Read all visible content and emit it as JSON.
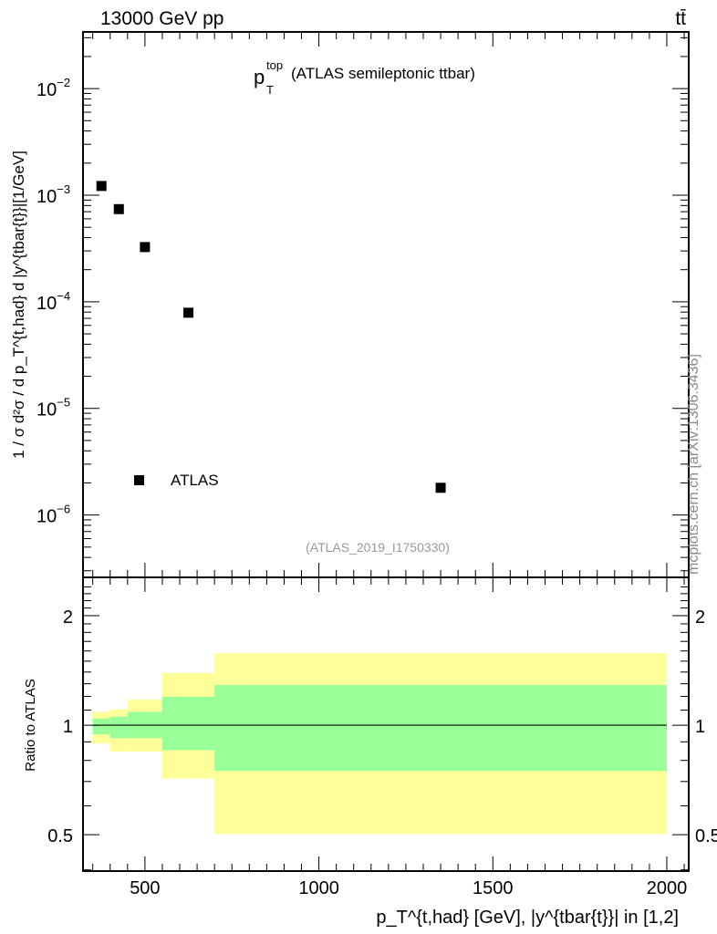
{
  "chart_data": [
    {
      "type": "scatter",
      "header_left": "13000 GeV pp",
      "header_right": "tt̄",
      "title_main": "p",
      "title_sup": "top",
      "title_sub": "T",
      "title_rest": "(ATLAS semileptonic ttbar)",
      "ylabel": "1 / σ d²σ / d p_T^{t,had} d |y^{tbar{t}}|[1/GeV]",
      "ylabel_parts": {
        "a": "1 / σ d",
        "b": "2",
        "c": "σ / d p",
        "d": "t,had",
        "e": "T",
        "f": " d |y",
        "g": "tbar{t",
        "h": "}|[1/GeV]"
      },
      "yscale": "log",
      "ylim": [
        2.6e-07,
        0.034
      ],
      "xlim": [
        322,
        2063
      ],
      "ytick_labels": [
        {
          "v": 0.01,
          "exp": "−2"
        },
        {
          "v": 0.001,
          "exp": "−3"
        },
        {
          "v": 0.0001,
          "exp": "−4"
        },
        {
          "v": 1e-05,
          "exp": "−5"
        },
        {
          "v": 1e-06,
          "exp": "−6"
        }
      ],
      "series": [
        {
          "name": "ATLAS",
          "x": [
            375,
            425,
            500,
            625,
            1350
          ],
          "y": [
            0.00122,
            0.00074,
            0.000326,
            7.9e-05,
            1.8e-06
          ]
        }
      ],
      "legend": {
        "label": "ATLAS",
        "placement": "bottom-left"
      },
      "annotation": "(ATLAS_2019_I1750330)",
      "side_label": "mcplots.cern.ch [arXiv:1306.3436]"
    },
    {
      "type": "area",
      "ylabel": "Ratio to ATLAS",
      "yscale": "log",
      "ylim": [
        0.397,
        2.55
      ],
      "yticks": [
        0.5,
        1,
        2
      ],
      "ytick_labels": [
        "0.5",
        "1",
        "2"
      ],
      "xticks": [
        500,
        1000,
        1500,
        2000
      ],
      "xtick_labels": [
        "500",
        "1000",
        "1500",
        "2000"
      ],
      "xlabel_parts": {
        "a": "p",
        "b": "t,had",
        "c": "T",
        "d": " [GeV], |y",
        "e": "tbar{t",
        "f": "}| in [1,2]"
      },
      "xlabel": "p_T^{t,had} [GeV], |y^{tbar{t}}| in [1,2]",
      "bins": [
        350,
        400,
        450,
        550,
        700,
        2000
      ],
      "bands": [
        {
          "name": "total uncertainty",
          "color": "#ffff99",
          "low": [
            0.891,
            0.847,
            0.847,
            0.713,
            0.502
          ],
          "high": [
            1.088,
            1.105,
            1.175,
            1.392,
            1.578
          ]
        },
        {
          "name": "stat uncertainty",
          "color": "#99ff99",
          "low": [
            0.944,
            0.921,
            0.921,
            0.854,
            0.749
          ],
          "high": [
            1.043,
            1.055,
            1.088,
            1.198,
            1.289
          ]
        }
      ],
      "reference_line": 1
    }
  ]
}
